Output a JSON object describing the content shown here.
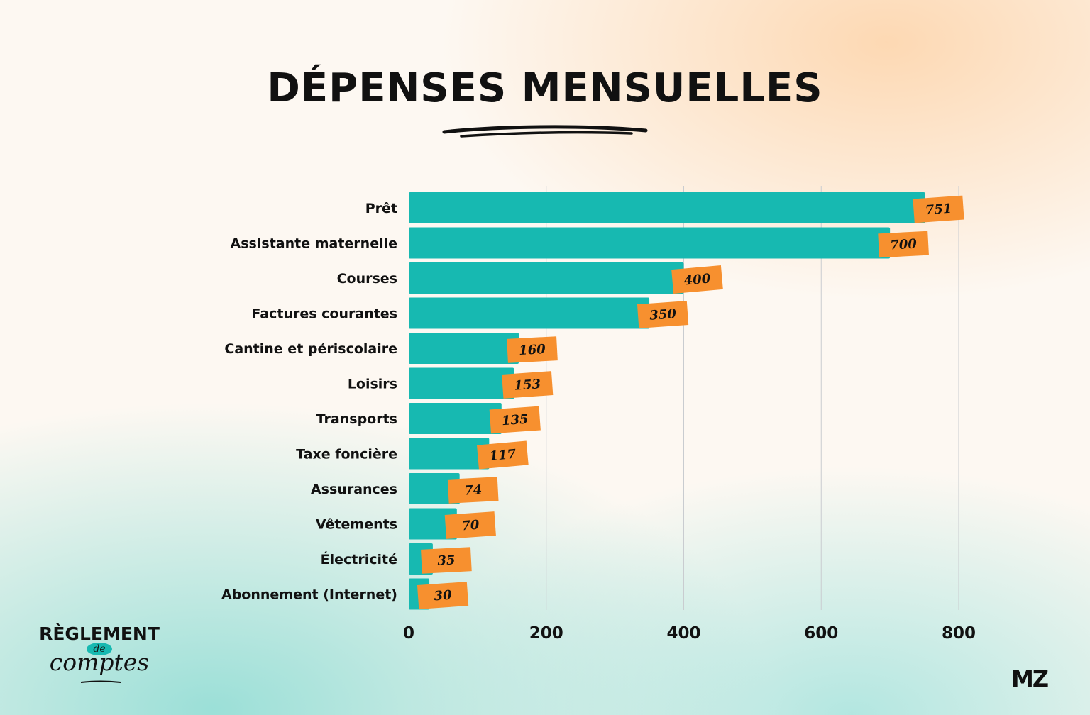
{
  "title": "DÉPENSES MENSUELLES",
  "colors": {
    "bar": "#17b9b1",
    "label_bg": "#f7902f",
    "grid": "#c9ccd0",
    "text": "#111111"
  },
  "chart_data": {
    "type": "bar",
    "orientation": "horizontal",
    "title": "DÉPENSES MENSUELLES",
    "categories": [
      "Prêt",
      "Assistante  maternelle",
      "Courses",
      "Factures courantes",
      "Cantine et périscolaire",
      "Loisirs",
      "Transports",
      "Taxe foncière",
      "Assurances",
      "Vêtements",
      "Électricité",
      "Abonnement (Internet)"
    ],
    "values": [
      751,
      700,
      400,
      350,
      160,
      153,
      135,
      117,
      74,
      70,
      35,
      30
    ],
    "xlim": [
      0,
      800
    ],
    "xticks": [
      "0",
      "200",
      "400",
      "600",
      "800"
    ],
    "xtick_values": [
      0,
      200,
      400,
      600,
      800
    ],
    "grid": "vertical",
    "xlabel": "",
    "ylabel": ""
  },
  "brand": {
    "top": "RÈGLEMENT",
    "middle": "de",
    "bottom": "comptes"
  },
  "corner_logo": "MZ"
}
